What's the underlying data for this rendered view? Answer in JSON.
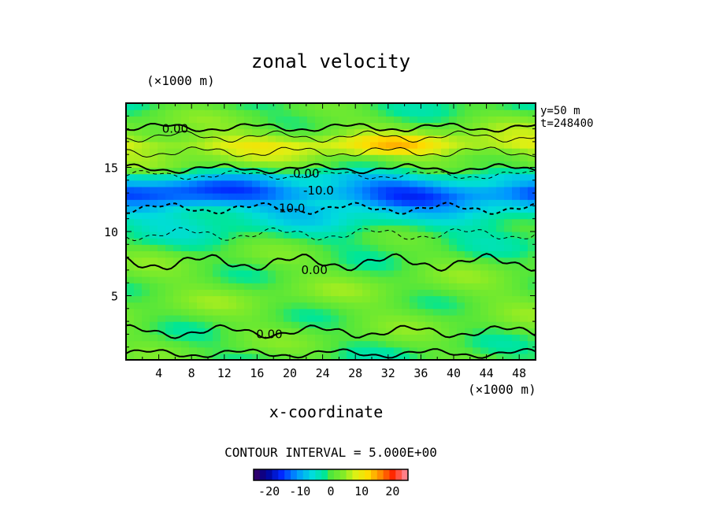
{
  "chart_data": {
    "type": "heatmap",
    "title": "zonal velocity",
    "xlabel": "x-coordinate",
    "x_unit_label": "(×1000 m)",
    "y_unit_label": "(×1000 m)",
    "xlim": [
      0,
      50
    ],
    "ylim": [
      0,
      20
    ],
    "x_ticks": [
      4,
      8,
      12,
      16,
      20,
      24,
      28,
      32,
      36,
      40,
      44,
      48
    ],
    "y_ticks": [
      5,
      10,
      15
    ],
    "info_lines": [
      "y=50 m",
      "t=248400"
    ],
    "contour_interval_text": "CONTOUR INTERVAL = 5.000E+00",
    "contour_labels": [
      {
        "text": "0.00",
        "x": 6,
        "y": 18
      },
      {
        "text": "0.00",
        "x": 22,
        "y": 14.5
      },
      {
        "text": "-10.0",
        "x": 23.5,
        "y": 13.2
      },
      {
        "text": "-10.0",
        "x": 20,
        "y": 11.8
      },
      {
        "text": "0.00",
        "x": 23,
        "y": 7.0
      },
      {
        "text": "0.00",
        "x": 17.5,
        "y": 2.0
      }
    ],
    "zonal_profile": [
      {
        "y": 0,
        "u": 0
      },
      {
        "y": 2,
        "u": 1
      },
      {
        "y": 5,
        "u": 2
      },
      {
        "y": 8,
        "u": 1
      },
      {
        "y": 10,
        "u": -2
      },
      {
        "y": 11.5,
        "u": -6
      },
      {
        "y": 13,
        "u": -14
      },
      {
        "y": 14.2,
        "u": -7
      },
      {
        "y": 15,
        "u": 1
      },
      {
        "y": 16.8,
        "u": 8
      },
      {
        "y": 18,
        "u": 3
      },
      {
        "y": 20,
        "u": -1
      }
    ],
    "colorbar": {
      "range": [
        -25,
        25
      ],
      "ticks": [
        -20,
        -10,
        0,
        10,
        20
      ],
      "tick_labels": [
        "-20",
        "-10",
        "0",
        "10",
        "20"
      ]
    }
  }
}
